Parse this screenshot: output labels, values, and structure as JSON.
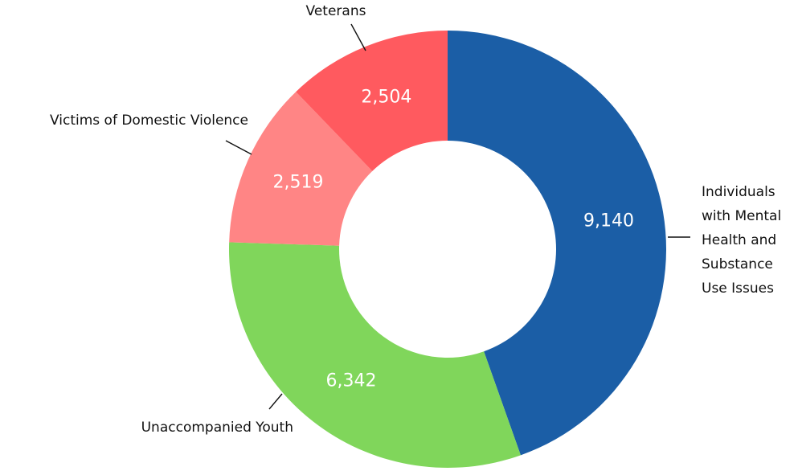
{
  "chart_data": {
    "type": "pie",
    "donut": true,
    "title": "",
    "series": [
      {
        "name": "",
        "slices": [
          {
            "label": "Individuals with Mental Health and Substance Use Issues",
            "value": 9140,
            "value_text": "9,140",
            "color": "#1B5EA6"
          },
          {
            "label": "Unaccompanied Youth",
            "value": 6342,
            "value_text": "6,342",
            "color": "#80D65B"
          },
          {
            "label": "Victims of Domestic Violence",
            "value": 2519,
            "value_text": "2,519",
            "color": "#FF8585"
          },
          {
            "label": "Veterans",
            "value": 2504,
            "value_text": "2,504",
            "color": "#FF5A5F"
          }
        ]
      }
    ],
    "legend": "none",
    "label_style": "outside with leader lines; values inside slices"
  }
}
